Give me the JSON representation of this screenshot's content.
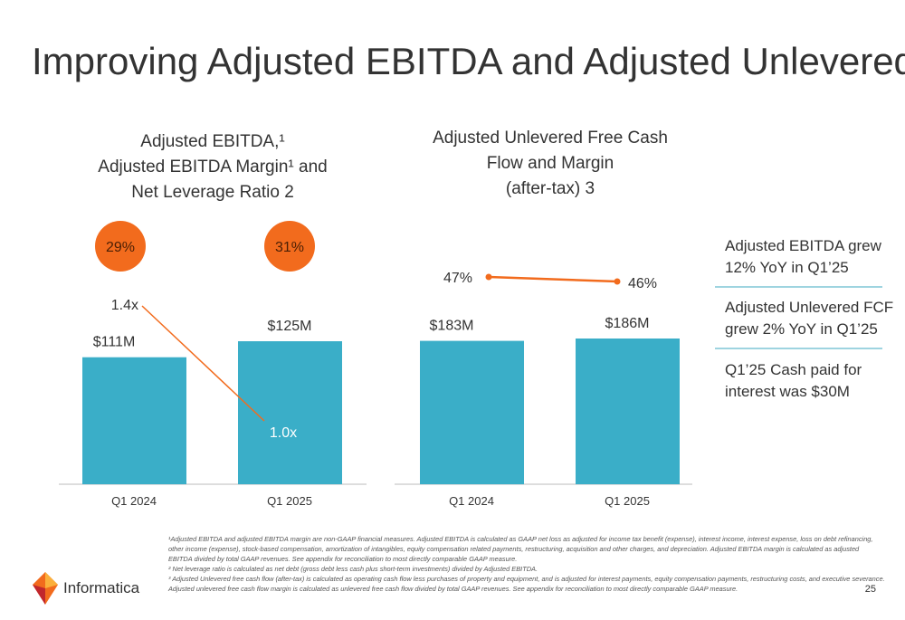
{
  "title": "Improving Adjusted EBITDA and Adjusted Unlevered FCF",
  "chart_data": [
    {
      "type": "bar",
      "title": [
        "Adjusted EBITDA,¹",
        "Adjusted EBITDA Margin¹ and",
        "Net Leverage Ratio 2"
      ],
      "categories": [
        "Q1 2024",
        "Q1 2025"
      ],
      "values": [
        111,
        125
      ],
      "value_labels": [
        "$111M",
        "$125M"
      ],
      "color": "#3aaec8",
      "margin": {
        "values": [
          29,
          31
        ],
        "value_labels": [
          "29%",
          "31%"
        ],
        "color": "#f26b1d"
      },
      "leverage": {
        "values": [
          1.4,
          1.0
        ],
        "value_labels": [
          "1.4x",
          "1.0x"
        ],
        "color": "#f26b1d"
      }
    },
    {
      "type": "bar",
      "title": [
        "Adjusted Unlevered Free Cash",
        "Flow and Margin",
        "(after-tax) 3"
      ],
      "categories": [
        "Q1 2024",
        "Q1 2025"
      ],
      "values": [
        183,
        186
      ],
      "value_labels": [
        "$183M",
        "$186M"
      ],
      "color": "#3aaec8",
      "margin": {
        "values": [
          47,
          46
        ],
        "value_labels": [
          "47%",
          "46%"
        ],
        "color": "#f26b1d"
      }
    }
  ],
  "callouts": [
    [
      "Adjusted EBITDA grew",
      "12% YoY in Q1’25"
    ],
    [
      "Adjusted Unlevered FCF",
      "grew 2% YoY in Q1’25"
    ],
    [
      "Q1’25 Cash paid for",
      "interest was $30M"
    ]
  ],
  "footnotes": [
    "¹Adjusted EBITDA and adjusted EBITDA margin are non-GAAP financial measures. Adjusted EBITDA is calculated as GAAP net loss as adjusted for income tax benefit (expense), interest income, interest expense, loss on debt refinancing,",
    "other income (expense), stock-based compensation, amortization of intangibles, equity compensation related payments, restructuring, acquisition and other charges, and depreciation. Adjusted EBITDA margin is calculated as adjusted",
    "EBITDA divided by total GAAP revenues. See appendix for reconciliation to most directly comparable GAAP measure.",
    "² Net leverage ratio is calculated as net debt (gross debt less cash plus short-term investments) divided by Adjusted EBITDA.",
    "³ Adjusted Unlevered free cash flow (after-tax) is calculated as operating cash flow less purchases of property and equipment, and is adjusted for interest payments, equity compensation payments, restructuring costs, and executive severance.",
    "Adjusted unlevered free cash flow margin is calculated as unlevered free cash flow divided by total GAAP revenues. See appendix for reconciliation to most directly comparable GAAP measure."
  ],
  "logo": "Informatica",
  "page_number": "25"
}
